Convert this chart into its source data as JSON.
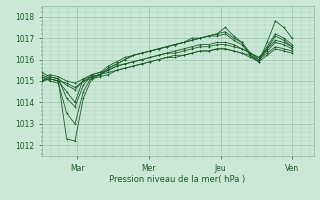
{
  "title": "",
  "xlabel": "Pression niveau de la mer( hPa )",
  "bg_color": "#cce8d8",
  "plot_bg_color": "#cce8d8",
  "grid_major_color": "#88bb99",
  "grid_minor_color": "#aad4bb",
  "line_color": "#1a5c28",
  "ylim": [
    1011.5,
    1018.5
  ],
  "yticks": [
    1012,
    1013,
    1014,
    1015,
    1016,
    1017,
    1018
  ],
  "xlim": [
    0,
    7.6
  ],
  "day_positions": [
    1.0,
    3.0,
    5.0,
    7.0
  ],
  "day_labels": [
    "Mar",
    "Mer",
    "Jeu",
    "Ven"
  ],
  "series": [
    [
      1015.0,
      1015.1,
      1015.0,
      1012.3,
      1012.2,
      1014.2,
      1015.1,
      1015.3,
      1015.6,
      1015.8,
      1016.0,
      1016.2,
      1016.3,
      1016.4,
      1016.5,
      1016.6,
      1016.7,
      1016.8,
      1017.0,
      1017.0,
      1017.1,
      1017.2,
      1017.5,
      1017.1,
      1016.8,
      1016.2,
      1015.9,
      1016.8,
      1017.8,
      1017.5,
      1017.0
    ],
    [
      1015.3,
      1015.1,
      1015.0,
      1014.5,
      1014.0,
      1015.1,
      1015.3,
      1015.4,
      1015.5,
      1015.7,
      1015.8,
      1015.9,
      1016.0,
      1016.1,
      1016.2,
      1016.3,
      1016.4,
      1016.5,
      1016.6,
      1016.7,
      1016.7,
      1016.8,
      1016.8,
      1016.7,
      1016.5,
      1016.3,
      1016.1,
      1016.5,
      1016.9,
      1016.8,
      1016.6
    ],
    [
      1015.0,
      1015.2,
      1015.1,
      1014.8,
      1014.6,
      1015.0,
      1015.2,
      1015.3,
      1015.5,
      1015.7,
      1015.8,
      1015.9,
      1016.0,
      1016.1,
      1016.2,
      1016.3,
      1016.3,
      1016.4,
      1016.5,
      1016.6,
      1016.6,
      1016.7,
      1016.7,
      1016.6,
      1016.5,
      1016.3,
      1016.1,
      1016.4,
      1016.8,
      1016.7,
      1016.5
    ],
    [
      1015.2,
      1015.0,
      1014.9,
      1013.5,
      1013.0,
      1014.5,
      1015.2,
      1015.3,
      1015.6,
      1015.8,
      1016.0,
      1016.2,
      1016.3,
      1016.4,
      1016.5,
      1016.6,
      1016.7,
      1016.8,
      1016.9,
      1017.0,
      1017.1,
      1017.2,
      1017.3,
      1017.0,
      1016.8,
      1016.3,
      1016.0,
      1016.6,
      1017.2,
      1017.0,
      1016.7
    ],
    [
      1015.1,
      1015.3,
      1015.2,
      1015.0,
      1014.9,
      1015.1,
      1015.2,
      1015.3,
      1015.4,
      1015.5,
      1015.6,
      1015.7,
      1015.8,
      1015.9,
      1016.0,
      1016.1,
      1016.1,
      1016.2,
      1016.3,
      1016.4,
      1016.4,
      1016.5,
      1016.5,
      1016.4,
      1016.3,
      1016.2,
      1016.0,
      1016.3,
      1016.6,
      1016.5,
      1016.4
    ],
    [
      1015.4,
      1015.2,
      1015.1,
      1014.2,
      1013.8,
      1014.8,
      1015.3,
      1015.4,
      1015.7,
      1015.9,
      1016.1,
      1016.2,
      1016.3,
      1016.4,
      1016.5,
      1016.6,
      1016.7,
      1016.8,
      1016.9,
      1017.0,
      1017.1,
      1017.1,
      1017.2,
      1016.9,
      1016.7,
      1016.2,
      1015.9,
      1016.5,
      1017.1,
      1016.9,
      1016.6
    ],
    [
      1015.0,
      1015.1,
      1015.0,
      1014.9,
      1014.7,
      1015.0,
      1015.1,
      1015.2,
      1015.3,
      1015.5,
      1015.6,
      1015.7,
      1015.8,
      1015.9,
      1016.0,
      1016.1,
      1016.2,
      1016.2,
      1016.3,
      1016.4,
      1016.4,
      1016.5,
      1016.5,
      1016.4,
      1016.3,
      1016.1,
      1015.9,
      1016.2,
      1016.5,
      1016.4,
      1016.3
    ]
  ]
}
